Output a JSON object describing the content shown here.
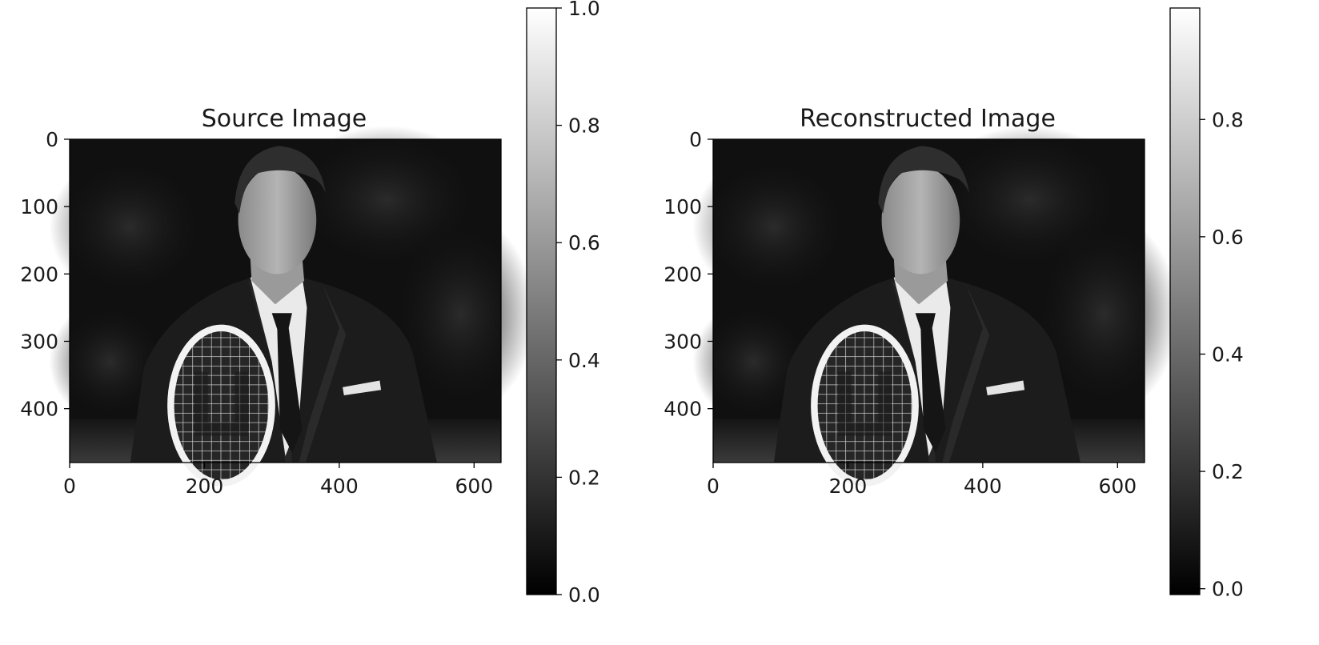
{
  "chart_data": [
    {
      "type": "heatmap",
      "title": "Source Image",
      "xlabel": "",
      "ylabel": "",
      "xlim": [
        0,
        640
      ],
      "ylim": [
        480,
        0
      ],
      "x_ticks": [
        0,
        200,
        400,
        600
      ],
      "y_ticks": [
        0,
        100,
        200,
        300,
        400
      ],
      "colormap": "gray",
      "content": "grayscale photograph of a man in a dark suit holding a tennis racket against a dark foliage background",
      "colorbar": {
        "range": [
          0.0,
          1.0
        ],
        "ticks": [
          "0.0",
          "0.2",
          "0.4",
          "0.6",
          "0.8",
          "1.0"
        ]
      }
    },
    {
      "type": "heatmap",
      "title": "Reconstructed Image",
      "xlabel": "",
      "ylabel": "",
      "xlim": [
        0,
        640
      ],
      "ylim": [
        480,
        0
      ],
      "x_ticks": [
        0,
        200,
        400,
        600
      ],
      "y_ticks": [
        0,
        100,
        200,
        300,
        400
      ],
      "colormap": "gray",
      "content": "reconstructed grayscale photograph, visually near-identical to the source image",
      "colorbar": {
        "range": [
          -0.01,
          0.99
        ],
        "ticks": [
          "0.0",
          "0.2",
          "0.4",
          "0.6",
          "0.8"
        ]
      }
    }
  ]
}
